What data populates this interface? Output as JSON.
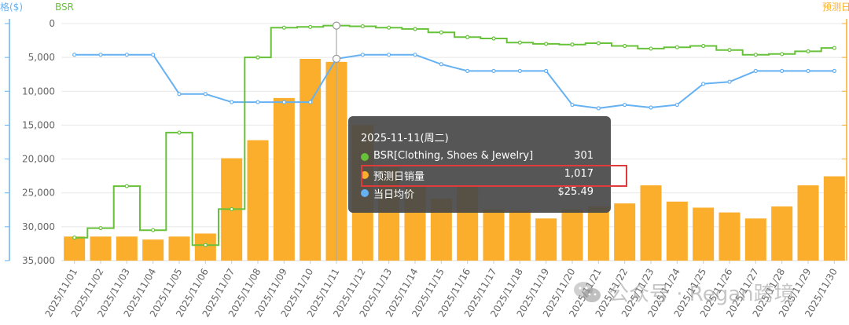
{
  "chart_data": {
    "type": "bar+line",
    "left_axis_title": "格($)",
    "bsr_axis_title": "BSR",
    "right_axis_title": "预测日",
    "bsr_axis": {
      "min": 0,
      "max": 35000,
      "inverted": true,
      "ticks": [
        "0",
        "5,000",
        "10,000",
        "15,000",
        "20,000",
        "25,000",
        "30,000",
        "35,000"
      ]
    },
    "x": [
      "2025/11/01",
      "2025/11/02",
      "2025/11/03",
      "2025/11/04",
      "2025/11/05",
      "2025/11/06",
      "2025/11/07",
      "2025/11/08",
      "2025/11/09",
      "2025/11/10",
      "2025/11/11",
      "2025/11/12",
      "2025/11/13",
      "2025/11/14",
      "2025/11/15",
      "2025/11/16",
      "2025/11/17",
      "2025/11/18",
      "2025/11/19",
      "2025/11/20",
      "2025/11/21",
      "2025/11/22",
      "2025/11/23",
      "2025/11/24",
      "2025/11/25",
      "2025/11/26",
      "2025/11/27",
      "2025/11/28",
      "2025/11/29",
      "2025/11/30"
    ],
    "series": [
      {
        "name": "BSR[Clothing, Shoes & Jewelry]",
        "type": "step-line",
        "color": "#67c23a",
        "values": [
          31600,
          30200,
          24000,
          30500,
          16100,
          32700,
          27400,
          5000,
          600,
          500,
          301,
          400,
          600,
          800,
          1300,
          2000,
          2200,
          2800,
          3000,
          3100,
          2900,
          3300,
          3700,
          3500,
          3300,
          3900,
          4600,
          4500,
          4100,
          3600
        ]
      },
      {
        "name": "预测日销量",
        "type": "bar",
        "color": "#fbae2c",
        "values": [
          40,
          40,
          40,
          35,
          40,
          45,
          170,
          200,
          270,
          335,
          330,
          225,
          155,
          125,
          103,
          125,
          85,
          83,
          70,
          85,
          90,
          95,
          125,
          98,
          88,
          80,
          70,
          90,
          125,
          140
        ]
      },
      {
        "name": "当日均价",
        "type": "line",
        "color": "#66b1f2",
        "values": [
          4600,
          4600,
          4600,
          4600,
          10400,
          10400,
          11600,
          11600,
          11600,
          11600,
          5200,
          4600,
          4600,
          4600,
          6000,
          7000,
          7000,
          7000,
          7000,
          12000,
          12500,
          12000,
          12400,
          12000,
          8900,
          8600,
          7000,
          7000,
          7000,
          7000
        ]
      }
    ],
    "highlight_index": 10,
    "tooltip": {
      "title": "2025-11-11(周二)",
      "rows": [
        {
          "label": "BSR[Clothing, Shoes & Jewelry]",
          "value": "301",
          "color": "#67c23a"
        },
        {
          "label": "预测日销量",
          "value": "1,017",
          "color": "#fbae2c"
        },
        {
          "label": "当日均价",
          "value": "$25.49",
          "color": "#66b1f2"
        }
      ]
    },
    "colors": {
      "bsr": "#67c23a",
      "sales": "#fbae2c",
      "price": "#66b1f2",
      "grid": "#e8e8e8",
      "highlight_box": "#e03a3a"
    }
  },
  "watermark": {
    "text": "公众号 · Regan跨境"
  }
}
